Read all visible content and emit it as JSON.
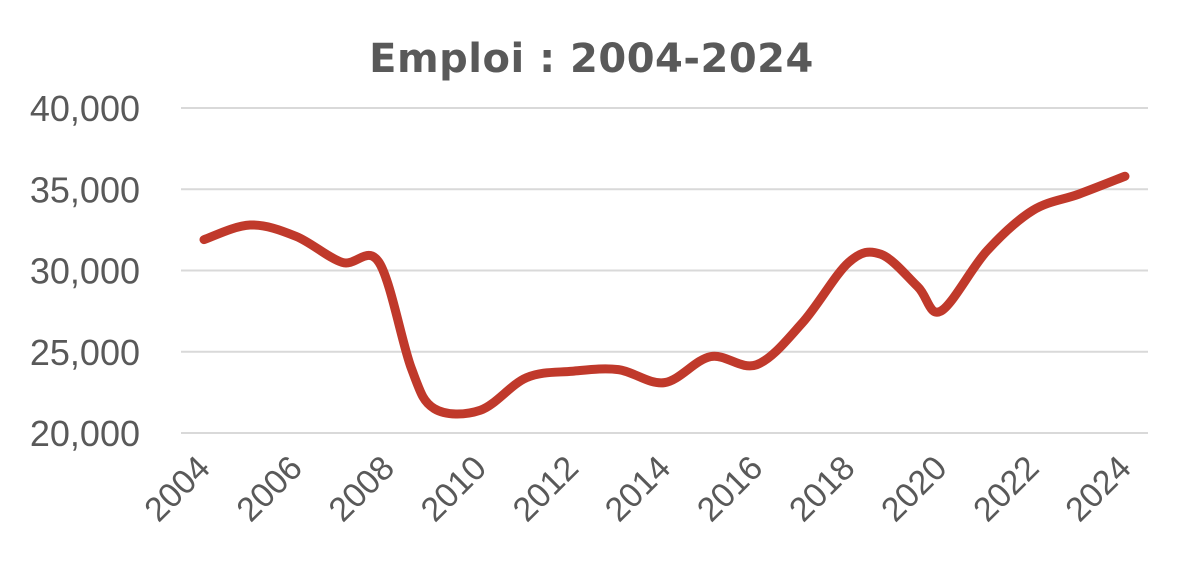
{
  "chart_data": {
    "type": "line",
    "title": "Emploi : 2004-2024",
    "xlabel": "",
    "ylabel": "",
    "ylim": [
      20000,
      40000
    ],
    "y_ticks": [
      "20,000",
      "25,000",
      "30,000",
      "35,000",
      "40,000"
    ],
    "x_ticks": [
      "2004",
      "2006",
      "2008",
      "2010",
      "2012",
      "2014",
      "2016",
      "2018",
      "2020",
      "2022",
      "2024"
    ],
    "grid": true,
    "line_color": "#C0392B",
    "grid_color": "#D9D9D9",
    "series": [
      {
        "x": [
          2004,
          2005,
          2006,
          2007,
          2007.8,
          2008.5,
          2009,
          2010,
          2011,
          2012,
          2013,
          2014,
          2015,
          2016,
          2017,
          2018,
          2018.7,
          2019.5,
          2020,
          2021,
          2022,
          2023,
          2024
        ],
        "values": [
          31900,
          32800,
          32100,
          30500,
          30500,
          24000,
          21500,
          21400,
          23400,
          23800,
          23900,
          23100,
          24700,
          24200,
          26800,
          30500,
          31000,
          29000,
          27500,
          31200,
          33700,
          34700,
          35800
        ]
      }
    ]
  }
}
